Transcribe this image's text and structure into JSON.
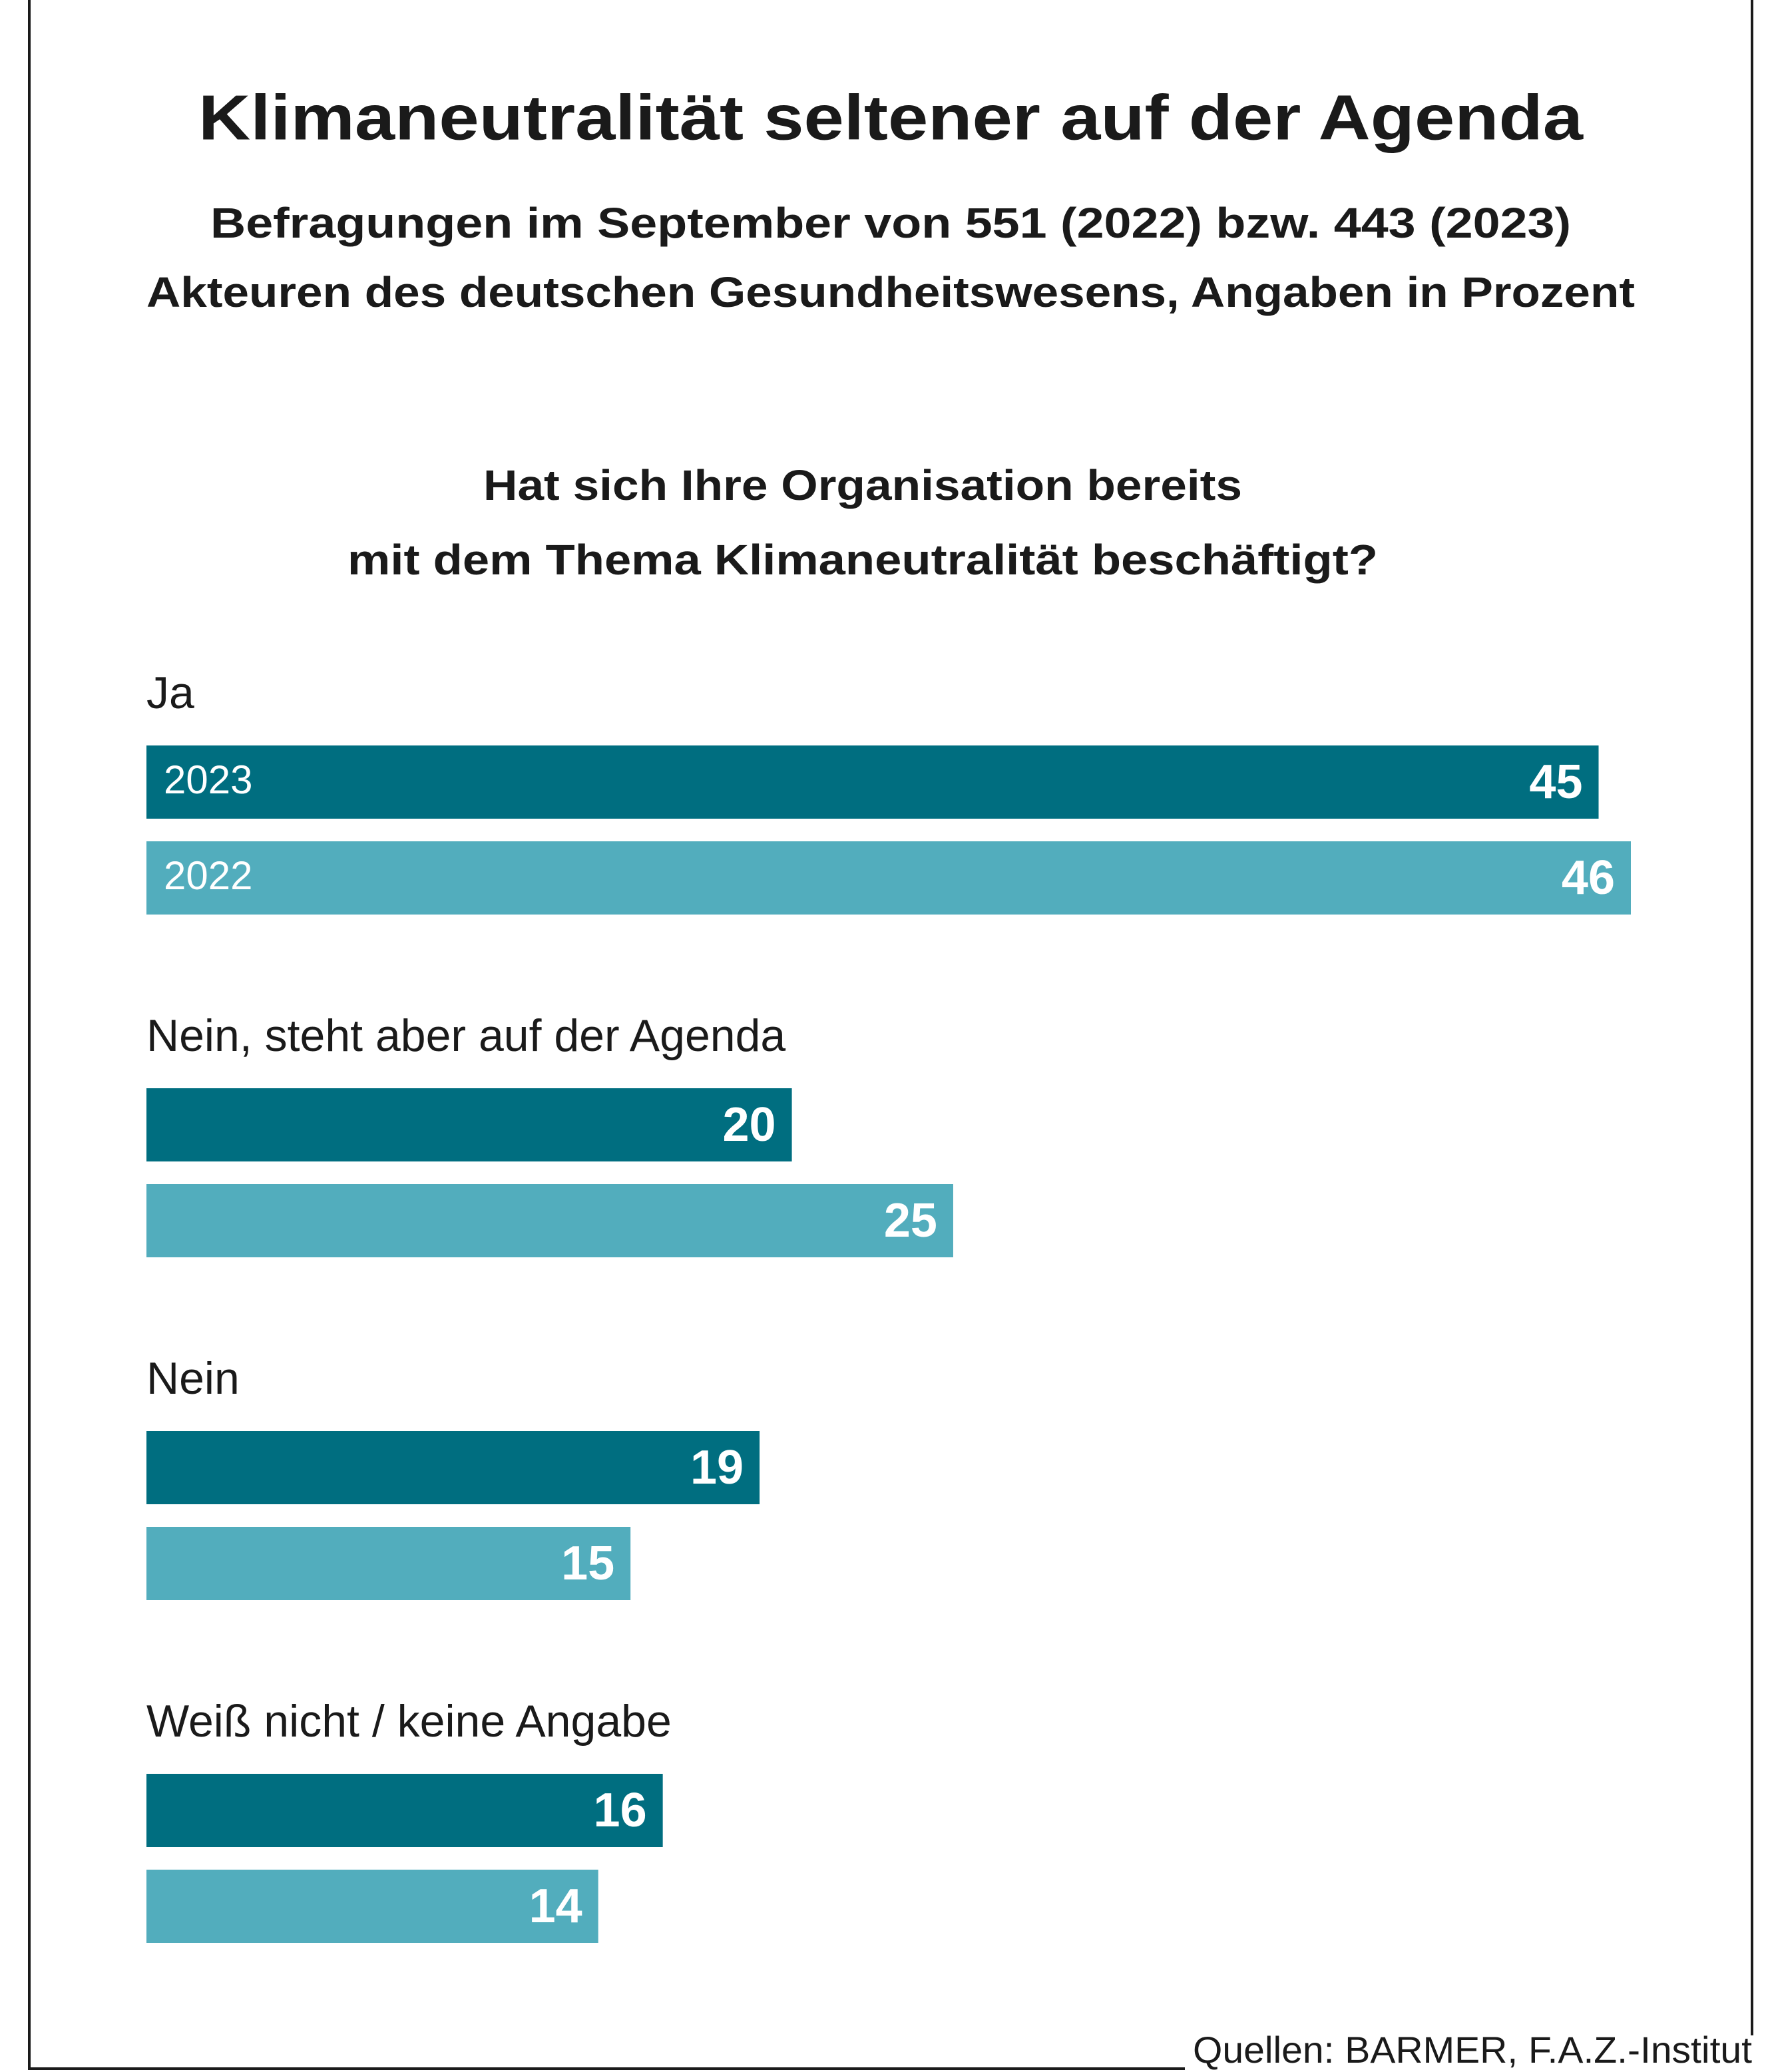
{
  "chart_data": {
    "type": "bar",
    "title": "Klimaneutralität seltener auf der Agenda",
    "subtitle": [
      "Befragungen im September von 551 (2022) bzw. 443 (2023)",
      "Akteuren des deutschen Gesundheitswesens, Angaben in Prozent"
    ],
    "question": [
      "Hat sich Ihre Organisation bereits",
      "mit dem Thema Klimaneutralität beschäftigt?"
    ],
    "categories": [
      "Ja",
      "Nein, steht aber auf der Agenda",
      "Nein",
      "Weiß nicht / keine Angabe"
    ],
    "series": [
      {
        "name": "2023",
        "color": "#006e80",
        "values": [
          45,
          20,
          19,
          16
        ]
      },
      {
        "name": "2022",
        "color": "#52adbd",
        "values": [
          46,
          25,
          15,
          14
        ]
      }
    ],
    "source": "Quellen: BARMER, F.A.Z.-Institut"
  }
}
